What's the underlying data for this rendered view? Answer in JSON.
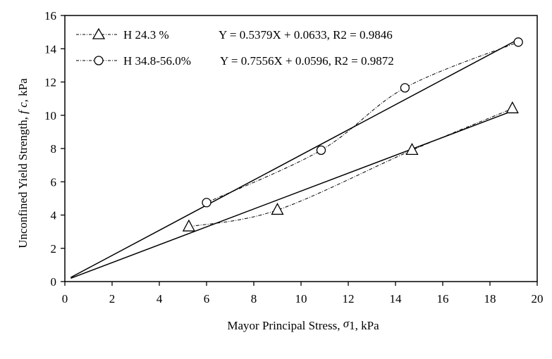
{
  "chart_data": {
    "type": "scatter",
    "title": "",
    "xlabel": "Mayor Principal Stress, σ1, kPa",
    "ylabel": "Unconfined Yield Strength, fc, kPa",
    "xlim": [
      0,
      20
    ],
    "ylim": [
      0,
      16
    ],
    "xticks": [
      0,
      2,
      4,
      6,
      8,
      10,
      12,
      14,
      16,
      18,
      20
    ],
    "yticks": [
      0,
      2,
      4,
      6,
      8,
      10,
      12,
      14,
      16
    ],
    "grid": false,
    "legend_position": "upper left (inside)",
    "series": [
      {
        "name": "H 24.3 %",
        "marker": "triangle",
        "line_style": "dash-dot smoothed",
        "x": [
          5.25,
          9.0,
          14.7,
          18.95
        ],
        "y": [
          3.3,
          4.3,
          7.9,
          10.4
        ],
        "fit": {
          "equation": "Y = 0.5379X + 0.0633, R2 = 0.9846",
          "slope": 0.5379,
          "intercept": 0.0633,
          "r2": 0.9846,
          "x_range": [
            0.25,
            19.0
          ]
        }
      },
      {
        "name": "H 34.8-56.0%",
        "marker": "circle",
        "line_style": "dash-dot smoothed",
        "x": [
          6.0,
          10.85,
          14.4,
          19.2
        ],
        "y": [
          4.75,
          7.9,
          11.65,
          14.4
        ],
        "fit": {
          "equation": "Y = 0.7556X + 0.0596, R2 = 0.9872",
          "slope": 0.7556,
          "intercept": 0.0596,
          "r2": 0.9872,
          "x_range": [
            0.25,
            19.2
          ]
        }
      }
    ]
  },
  "labels": {
    "xlabel_main": "Mayor Principal Stress, ",
    "xlabel_sigma": "σ",
    "xlabel_sub": "1",
    "xlabel_unit": ", kPa",
    "ylabel_main": "Unconfined Yield Strength, ",
    "ylabel_fc": "f c",
    "ylabel_unit": ", kPa"
  },
  "legend": [
    {
      "label": "H 24.3 %",
      "equation": "Y = 0.5379X + 0.0633, R2 = 0.9846",
      "marker": "triangle"
    },
    {
      "label": "H 34.8-56.0%",
      "equation": "Y = 0.7556X + 0.0596, R2 = 0.9872",
      "marker": "circle"
    }
  ]
}
